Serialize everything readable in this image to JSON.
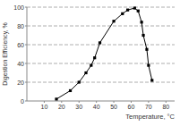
{
  "chart_data": {
    "type": "line",
    "x_label": "Temperature, °C",
    "y_label": "Digestion Efficiency, %",
    "x": [
      17,
      25,
      30,
      34,
      37,
      39,
      42,
      50,
      55,
      58,
      62,
      64,
      66,
      67,
      69,
      70,
      72
    ],
    "values": [
      2,
      11,
      20,
      30,
      38,
      46,
      62,
      85,
      93,
      97,
      99,
      96,
      84,
      70,
      55,
      38,
      22
    ],
    "color": "#000000",
    "marker": "square",
    "line_style": "solid",
    "xlim": [
      0,
      85
    ],
    "xticks": [
      10,
      20,
      30,
      40,
      50,
      60,
      70,
      80
    ],
    "ylim": [
      0,
      100
    ],
    "yticks": [
      0,
      20,
      40,
      60,
      80,
      100
    ],
    "grid": true
  }
}
